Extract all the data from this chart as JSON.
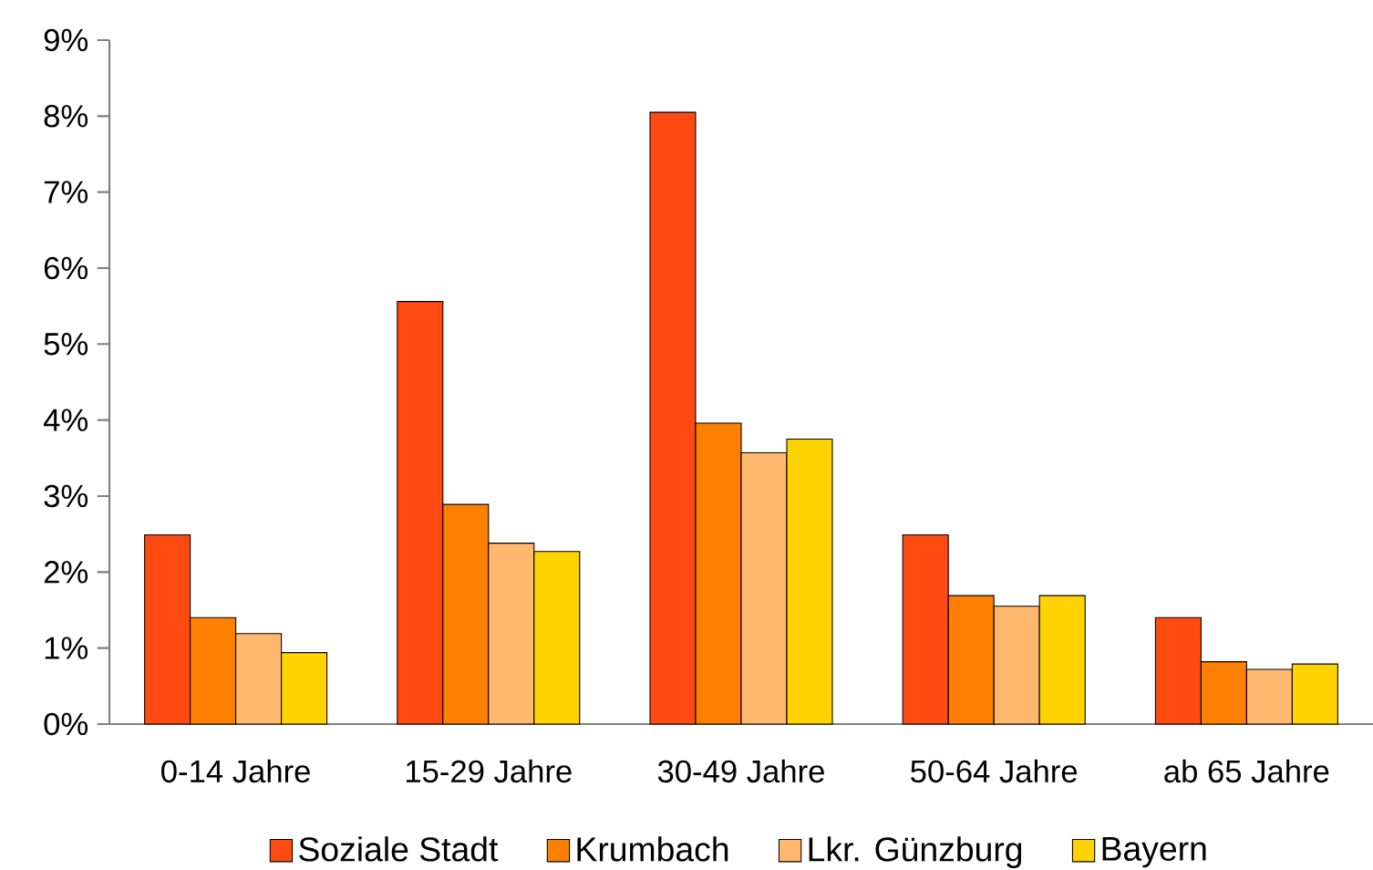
{
  "chart_data": {
    "type": "bar",
    "categories": [
      "0-14 Jahre",
      "15-29 Jahre",
      "30-49 Jahre",
      "50-64 Jahre",
      "ab 65 Jahre"
    ],
    "series": [
      {
        "name": "Soziale Stadt",
        "color": "#ff4b12",
        "values": [
          2.49,
          5.56,
          8.05,
          2.49,
          1.4
        ]
      },
      {
        "name": "Krumbach",
        "color": "#ff8000",
        "values": [
          1.4,
          2.89,
          3.96,
          1.69,
          0.82
        ]
      },
      {
        "name": "Lkr. Günzburg",
        "color": "#ffb86e",
        "values": [
          1.19,
          2.38,
          3.57,
          1.55,
          0.72
        ]
      },
      {
        "name": "Bayern",
        "color": "#ffd200",
        "values": [
          0.94,
          2.27,
          3.75,
          1.69,
          0.79
        ]
      }
    ],
    "ylim": [
      0,
      9
    ],
    "yticks": [
      {
        "value": 0,
        "label": "0%"
      },
      {
        "value": 1,
        "label": "1%"
      },
      {
        "value": 2,
        "label": "2%"
      },
      {
        "value": 3,
        "label": "3%"
      },
      {
        "value": 4,
        "label": "4%"
      },
      {
        "value": 5,
        "label": "5%"
      },
      {
        "value": 6,
        "label": "6%"
      },
      {
        "value": 7,
        "label": "7%"
      },
      {
        "value": 8,
        "label": "8%"
      },
      {
        "value": 9,
        "label": "9%"
      }
    ],
    "grid": false,
    "legend": "bottom"
  }
}
